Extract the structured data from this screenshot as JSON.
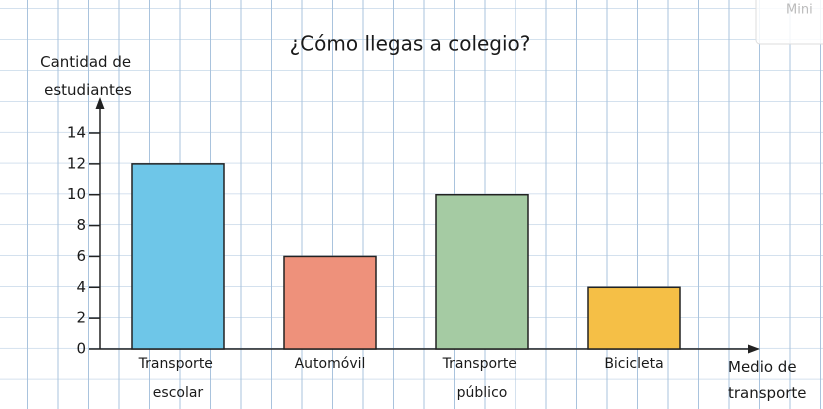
{
  "chart_data": {
    "type": "bar",
    "title": "¿Cómo llegas a colegio?",
    "y_label": "Cantidad de estudiantes",
    "x_label": "Medio de transporte",
    "categories": [
      "Transporte escolar",
      "Automóvil",
      "Transporte público",
      "Bicicleta"
    ],
    "values": [
      12,
      6,
      10,
      4
    ],
    "colors": [
      "#6ec6e8",
      "#ee917b",
      "#a5cba3",
      "#f5bf46"
    ],
    "ylim": [
      0,
      14
    ],
    "yticks": [
      0,
      2,
      4,
      6,
      8,
      10,
      12,
      14
    ],
    "grid": true,
    "overlay_text": "Mini"
  }
}
